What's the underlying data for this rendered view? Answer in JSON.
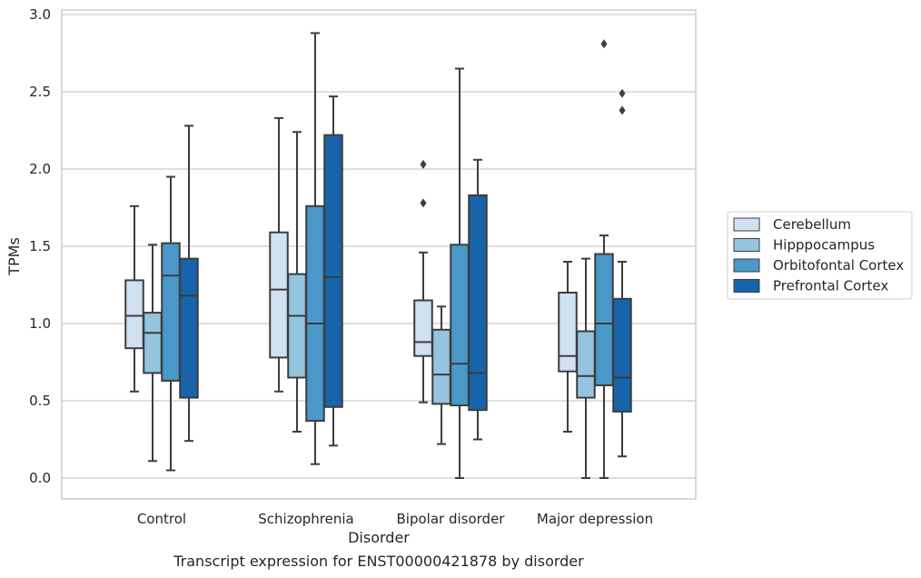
{
  "chart_data": {
    "type": "box",
    "caption": "Transcript expression for ENST00000421878 by disorder",
    "xlabel": "Disorder",
    "ylabel": "TPMs",
    "ylim": [
      -0.14,
      3.03
    ],
    "yticks": [
      "0.0",
      "0.5",
      "1.0",
      "1.5",
      "2.0",
      "2.5",
      "3.0"
    ],
    "ytick_values": [
      0,
      0.5,
      1.0,
      1.5,
      2.0,
      2.5,
      3.0
    ],
    "grid": true,
    "legend_position": "right",
    "categories": [
      "Control",
      "Schizophrenia",
      "Bipolar disorder",
      "Major depression"
    ],
    "series": [
      {
        "name": "Cerebellum",
        "color": "#d0e1f2",
        "boxes": [
          {
            "whislo": 0.56,
            "q1": 0.84,
            "med": 1.05,
            "q3": 1.28,
            "whishi": 1.76,
            "fliers": []
          },
          {
            "whislo": 0.56,
            "q1": 0.78,
            "med": 1.22,
            "q3": 1.59,
            "whishi": 2.33,
            "fliers": []
          },
          {
            "whislo": 0.49,
            "q1": 0.79,
            "med": 0.88,
            "q3": 1.15,
            "whishi": 1.46,
            "fliers": [
              1.78,
              2.03
            ]
          },
          {
            "whislo": 0.3,
            "q1": 0.69,
            "med": 0.79,
            "q3": 1.2,
            "whishi": 1.4,
            "fliers": []
          }
        ]
      },
      {
        "name": "Hipppocampus",
        "color": "#94c4df",
        "boxes": [
          {
            "whislo": 0.11,
            "q1": 0.68,
            "med": 0.94,
            "q3": 1.07,
            "whishi": 1.51,
            "fliers": []
          },
          {
            "whislo": 0.3,
            "q1": 0.65,
            "med": 1.05,
            "q3": 1.32,
            "whishi": 2.24,
            "fliers": []
          },
          {
            "whislo": 0.22,
            "q1": 0.48,
            "med": 0.67,
            "q3": 0.96,
            "whishi": 1.11,
            "fliers": []
          },
          {
            "whislo": 0.0,
            "q1": 0.52,
            "med": 0.66,
            "q3": 0.95,
            "whishi": 1.42,
            "fliers": []
          }
        ]
      },
      {
        "name": "Orbitofontal Cortex",
        "color": "#4a98c9",
        "boxes": [
          {
            "whislo": 0.05,
            "q1": 0.63,
            "med": 1.31,
            "q3": 1.52,
            "whishi": 1.95,
            "fliers": []
          },
          {
            "whislo": 0.09,
            "q1": 0.37,
            "med": 1.0,
            "q3": 1.76,
            "whishi": 2.88,
            "fliers": []
          },
          {
            "whislo": 0.0,
            "q1": 0.47,
            "med": 0.74,
            "q3": 1.51,
            "whishi": 2.65,
            "fliers": []
          },
          {
            "whislo": 0.0,
            "q1": 0.6,
            "med": 1.0,
            "q3": 1.45,
            "whishi": 1.57,
            "fliers": [
              2.81
            ]
          }
        ]
      },
      {
        "name": "Prefrontal Cortex",
        "color": "#1764ab",
        "boxes": [
          {
            "whislo": 0.24,
            "q1": 0.52,
            "med": 1.18,
            "q3": 1.42,
            "whishi": 2.28,
            "fliers": []
          },
          {
            "whislo": 0.21,
            "q1": 0.46,
            "med": 1.3,
            "q3": 2.22,
            "whishi": 2.47,
            "fliers": []
          },
          {
            "whislo": 0.25,
            "q1": 0.44,
            "med": 0.68,
            "q3": 1.83,
            "whishi": 2.06,
            "fliers": []
          },
          {
            "whislo": 0.14,
            "q1": 0.43,
            "med": 0.65,
            "q3": 1.16,
            "whishi": 1.4,
            "fliers": [
              2.38,
              2.49
            ]
          }
        ]
      }
    ]
  }
}
